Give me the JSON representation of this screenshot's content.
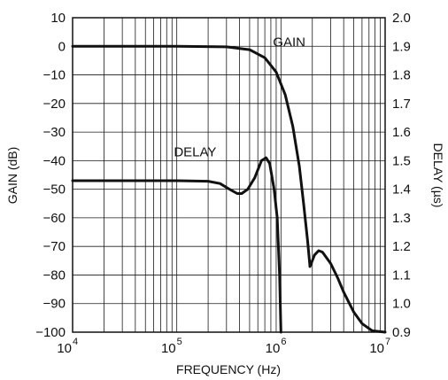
{
  "chart_data": {
    "type": "line",
    "xlabel": "FREQUENCY (Hz)",
    "ylabel_left": "GAIN (dB)",
    "ylabel_right": "DELAY (µs)",
    "x_scale": "log",
    "xlim": [
      10000,
      10000000
    ],
    "ylim_left": [
      -100,
      10
    ],
    "ylim_right": [
      0.9,
      2.0
    ],
    "grid": true,
    "x_ticks": [
      {
        "base": "10",
        "exp": "4",
        "value": 10000
      },
      {
        "base": "10",
        "exp": "5",
        "value": 100000
      },
      {
        "base": "10",
        "exp": "6",
        "value": 1000000
      },
      {
        "base": "10",
        "exp": "7",
        "value": 10000000
      }
    ],
    "y_ticks_left": [
      "10",
      "0",
      "−10",
      "−20",
      "−30",
      "−40",
      "−50",
      "−60",
      "−70",
      "−80",
      "−90",
      "−100"
    ],
    "y_ticks_right": [
      "2.0",
      "1.9",
      "1.8",
      "1.7",
      "1.6",
      "1.5",
      "1.4",
      "1.3",
      "1.2",
      "1.1",
      "1.0",
      "0.9"
    ],
    "series": [
      {
        "name": "GAIN",
        "axis": "left",
        "points": [
          [
            10000,
            0
          ],
          [
            100000,
            0
          ],
          [
            300000,
            -0.2
          ],
          [
            500000,
            -1.2
          ],
          [
            700000,
            -4
          ],
          [
            900000,
            -9
          ],
          [
            1100000,
            -17
          ],
          [
            1300000,
            -28
          ],
          [
            1500000,
            -42
          ],
          [
            1650000,
            -55
          ],
          [
            1800000,
            -68
          ],
          [
            1900000,
            -77
          ]
        ]
      },
      {
        "name": "DELAY",
        "axis": "right",
        "points": [
          [
            10000,
            1.43
          ],
          [
            100000,
            1.43
          ],
          [
            200000,
            1.428
          ],
          [
            260000,
            1.42
          ],
          [
            320000,
            1.4
          ],
          [
            380000,
            1.385
          ],
          [
            420000,
            1.385
          ],
          [
            480000,
            1.4
          ],
          [
            560000,
            1.44
          ],
          [
            650000,
            1.5
          ],
          [
            720000,
            1.51
          ],
          [
            780000,
            1.49
          ],
          [
            860000,
            1.4
          ],
          [
            920000,
            1.3
          ],
          [
            970000,
            1.1
          ],
          [
            1000000,
            0.9
          ]
        ]
      },
      {
        "name": "",
        "axis": "left",
        "points": [
          [
            1900000,
            -77
          ],
          [
            1950000,
            -76
          ],
          [
            2100000,
            -73
          ],
          [
            2300000,
            -71.5
          ],
          [
            2500000,
            -72
          ],
          [
            3000000,
            -76
          ],
          [
            3500000,
            -81
          ],
          [
            4000000,
            -86
          ],
          [
            5000000,
            -93
          ],
          [
            6000000,
            -97
          ],
          [
            7500000,
            -99.5
          ],
          [
            10000000,
            -100
          ]
        ]
      }
    ],
    "annotations": [
      {
        "text": "GAIN",
        "x": 1200000,
        "y": 1.5,
        "axis": "left"
      },
      {
        "text": "DELAY",
        "x": 150000,
        "y": -37,
        "axis": "left"
      }
    ]
  }
}
